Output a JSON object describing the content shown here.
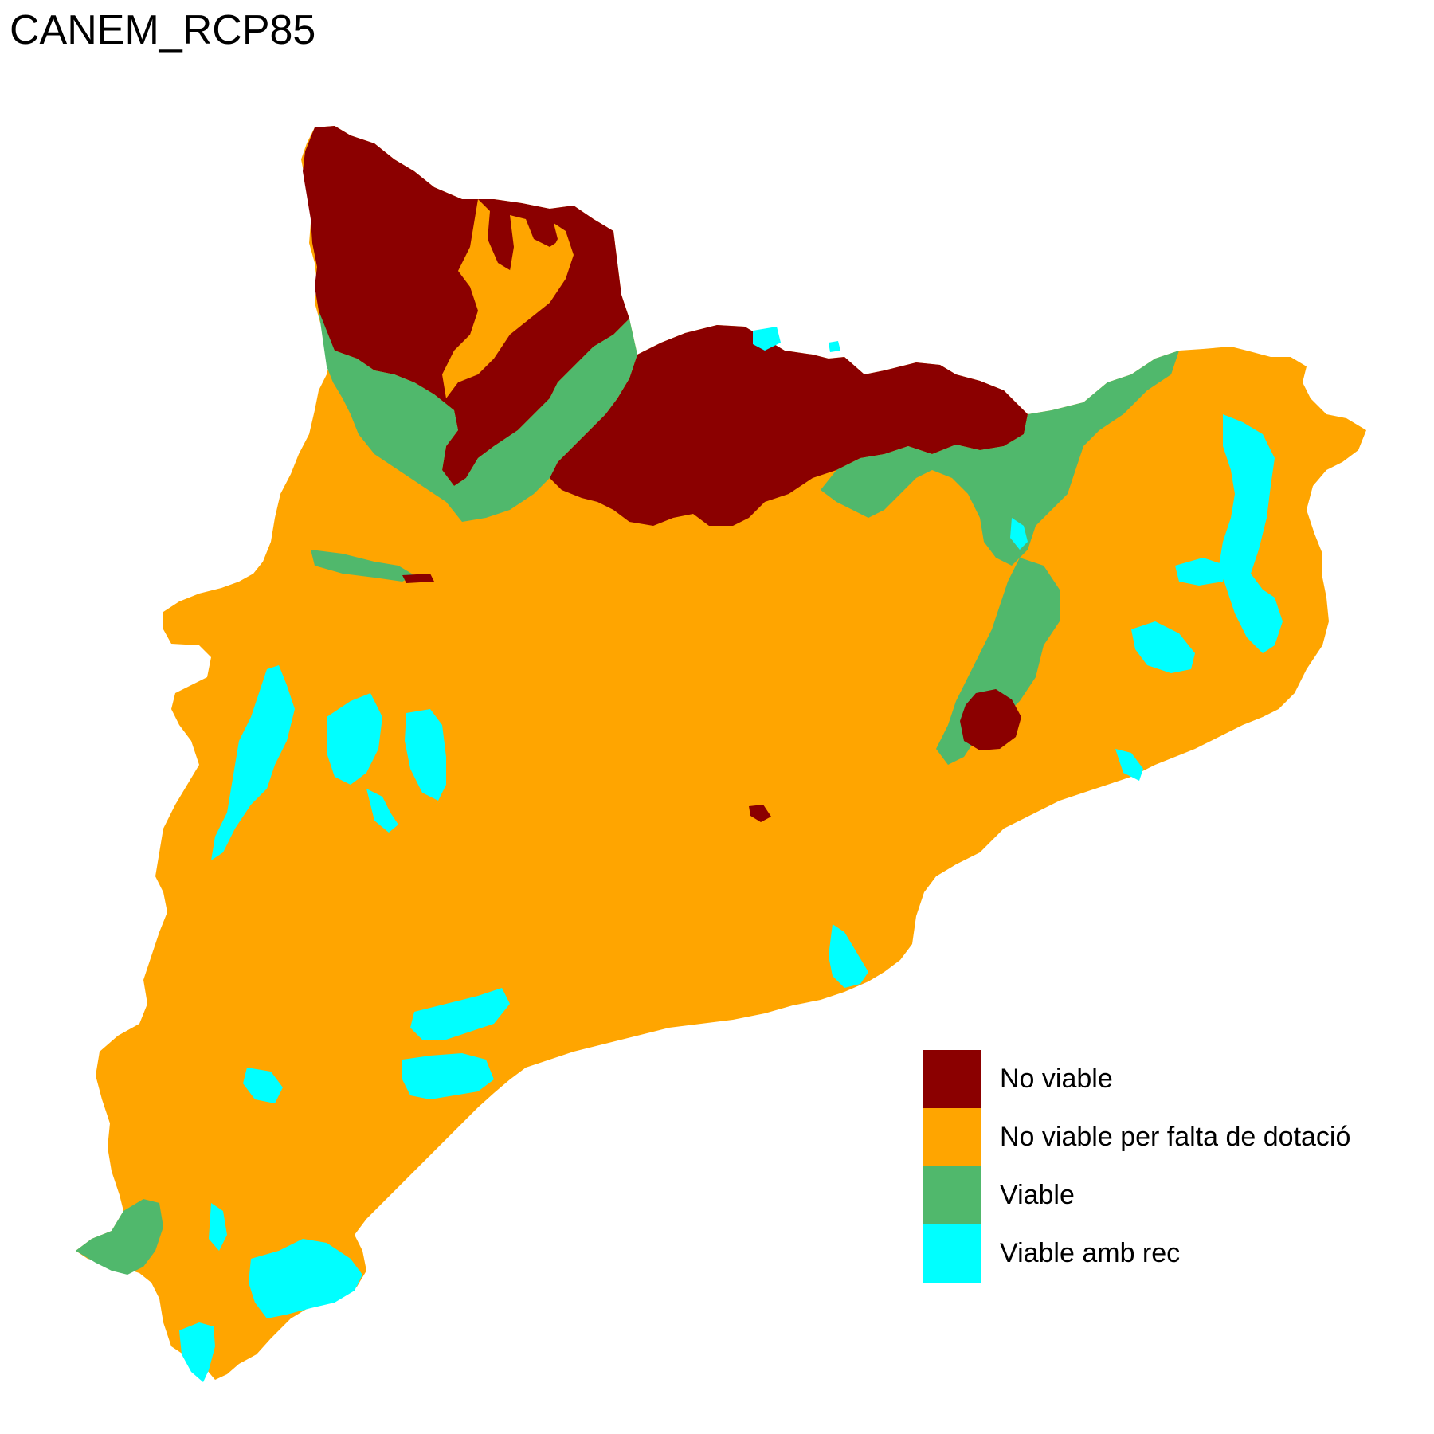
{
  "title": "CANEM_RCP85",
  "legend": [
    {
      "label": "No viable",
      "color": "#8B0000"
    },
    {
      "label": "No viable per falta de dotació",
      "color": "#FFA500"
    },
    {
      "label": "Viable",
      "color": "#50B86C"
    },
    {
      "label": "Viable amb rec",
      "color": "#00FFFF"
    }
  ]
}
